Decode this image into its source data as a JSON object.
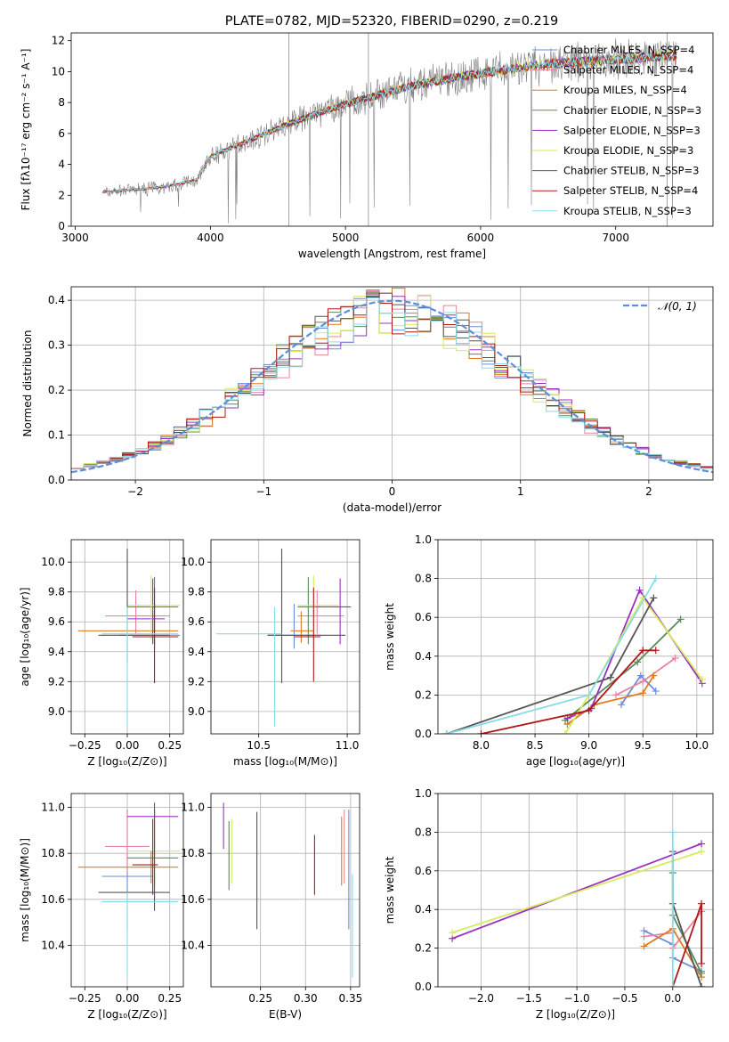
{
  "colors": {
    "chabrier_miles": "#6a8edc",
    "salpeter_miles": "#e7859e",
    "kroupa_miles": "#e07a1f",
    "chabrier_elodie": "#5a8a5a",
    "salpeter_elodie": "#9b30c0",
    "kroupa_elodie": "#d6ec5a",
    "chabrier_stelib": "#555555",
    "salpeter_stelib": "#b01818",
    "kroupa_stelib": "#86dde6",
    "data": "#808080",
    "normal": "#5b8fdc"
  },
  "chart_data": [
    {
      "id": "spectrum",
      "type": "line",
      "title": "PLATE=0782, MJD=52320, FIBERID=0290, z=0.219",
      "xlabel": "wavelength [Angstrom, rest frame]",
      "ylabel": "Flux [fλ10⁻¹⁷ erg cm⁻² s⁻¹ A⁻¹]",
      "xlim": [
        2970,
        7720
      ],
      "ylim": [
        0,
        12.5
      ],
      "xticks": [
        3000,
        4000,
        5000,
        6000,
        7000
      ],
      "yticks": [
        0,
        2,
        4,
        6,
        8,
        10,
        12
      ],
      "continuum_x": [
        3200,
        3500,
        3700,
        3900,
        4000,
        4300,
        4600,
        5000,
        5500,
        6000,
        6500,
        7000,
        7400
      ],
      "continuum_y": [
        2.2,
        2.4,
        2.6,
        3.0,
        4.5,
        5.6,
        6.7,
        7.9,
        9.1,
        9.9,
        10.5,
        10.8,
        11.0
      ],
      "legend": [
        "Chabrier MILES, N_SSP=4",
        "Salpeter MILES, N_SSP=4",
        "Kroupa MILES, N_SSP=4",
        "Chabrier ELODIE, N_SSP=3",
        "Salpeter ELODIE, N_SSP=3",
        "Kroupa ELODIE, N_SSP=3",
        "Chabrier STELIB, N_SSP=3",
        "Salpeter STELIB, N_SSP=4",
        "Kroupa STELIB, N_SSP=3"
      ]
    },
    {
      "id": "residuals",
      "type": "line",
      "xlabel": "(data-model)/error",
      "ylabel": "Normed distribution",
      "xlim": [
        -2.5,
        2.5
      ],
      "ylim": [
        0,
        0.43
      ],
      "xticks": [
        -2,
        -1,
        0,
        1,
        2
      ],
      "yticks": [
        0.0,
        0.1,
        0.2,
        0.3,
        0.4
      ],
      "legend": [
        "𝒩(0, 1)"
      ],
      "grid": true,
      "bin_width": 0.1
    },
    {
      "id": "age_vs_Z",
      "type": "scatter",
      "xlabel": "Z [log₁₀(Z/Z⊙)]",
      "ylabel": "age  [log₁₀(age/yr)]",
      "xlim": [
        -0.33,
        0.33
      ],
      "ylim": [
        8.85,
        10.15
      ],
      "xticks": [
        -0.25,
        0.0,
        0.25
      ],
      "xticklabels": [
        "−0.25",
        "0.00",
        "0.25"
      ],
      "yticks": [
        9.0,
        9.2,
        9.4,
        9.6,
        9.8,
        10.0
      ],
      "grid": true,
      "points": [
        {
          "x": 0.16,
          "y": 9.51,
          "xlo": -0.05,
          "xhi": 0.31,
          "ylo": 9.42,
          "yhi": 9.72,
          "c": "chabrier_miles"
        },
        {
          "x": 0.05,
          "y": 9.64,
          "xlo": -0.13,
          "xhi": 0.25,
          "ylo": 9.52,
          "yhi": 9.81,
          "c": "salpeter_miles"
        },
        {
          "x": 0.15,
          "y": 9.54,
          "xlo": -0.29,
          "xhi": 0.3,
          "ylo": 9.46,
          "yhi": 9.67,
          "c": "kroupa_miles"
        },
        {
          "x": 0.16,
          "y": 9.7,
          "xlo": 0.0,
          "xhi": 0.3,
          "ylo": 9.45,
          "yhi": 9.9,
          "c": "chabrier_elodie"
        },
        {
          "x": 0.15,
          "y": 9.62,
          "xlo": 0.0,
          "xhi": 0.22,
          "ylo": 9.45,
          "yhi": 9.89,
          "c": "salpeter_elodie"
        },
        {
          "x": 0.14,
          "y": 9.71,
          "xlo": 0.0,
          "xhi": 0.31,
          "ylo": 9.48,
          "yhi": 9.91,
          "c": "kroupa_elodie"
        },
        {
          "x": 0.0,
          "y": 9.51,
          "xlo": -0.17,
          "xhi": 0.25,
          "ylo": 9.32,
          "yhi": 10.09,
          "c": "chabrier_stelib"
        },
        {
          "x": 0.16,
          "y": 9.5,
          "xlo": 0.03,
          "xhi": 0.3,
          "ylo": 9.19,
          "yhi": 9.83,
          "c": "salpeter_stelib"
        },
        {
          "x": 0.0,
          "y": 9.52,
          "xlo": -0.15,
          "xhi": 0.3,
          "ylo": 8.9,
          "yhi": 9.7,
          "c": "kroupa_stelib"
        }
      ]
    },
    {
      "id": "age_vs_mass",
      "type": "scatter",
      "xlabel": "mass [log₁₀(M/M⊙)]",
      "xlim": [
        10.23,
        11.07
      ],
      "ylim": [
        8.85,
        10.15
      ],
      "xticks": [
        10.5,
        11.0
      ],
      "yticks": [
        9.0,
        9.2,
        9.4,
        9.6,
        9.8,
        10.0
      ],
      "grid": true,
      "points": [
        {
          "x": 10.7,
          "y": 9.51,
          "xlo": 10.55,
          "xhi": 10.85,
          "ylo": 9.42,
          "yhi": 9.72,
          "c": "chabrier_miles"
        },
        {
          "x": 10.83,
          "y": 9.64,
          "xlo": 10.72,
          "xhi": 10.98,
          "ylo": 9.52,
          "yhi": 9.81,
          "c": "salpeter_miles"
        },
        {
          "x": 10.74,
          "y": 9.54,
          "xlo": 10.68,
          "xhi": 10.81,
          "ylo": 9.46,
          "yhi": 9.67,
          "c": "kroupa_miles"
        },
        {
          "x": 10.78,
          "y": 9.7,
          "xlo": 10.72,
          "xhi": 10.85,
          "ylo": 9.45,
          "yhi": 9.9,
          "c": "chabrier_elodie"
        },
        {
          "x": 10.96,
          "y": 9.7,
          "xlo": 10.82,
          "xhi": 11.02,
          "ylo": 9.45,
          "yhi": 9.89,
          "c": "salpeter_elodie"
        },
        {
          "x": 10.81,
          "y": 9.71,
          "xlo": 10.72,
          "xhi": 10.95,
          "ylo": 9.48,
          "yhi": 9.91,
          "c": "kroupa_elodie"
        },
        {
          "x": 10.63,
          "y": 9.51,
          "xlo": 10.55,
          "xhi": 10.99,
          "ylo": 9.19,
          "yhi": 10.09,
          "c": "chabrier_stelib"
        },
        {
          "x": 10.81,
          "y": 9.5,
          "xlo": 10.7,
          "xhi": 10.85,
          "ylo": 9.2,
          "yhi": 9.83,
          "c": "salpeter_stelib"
        },
        {
          "x": 10.59,
          "y": 9.52,
          "xlo": 10.26,
          "xhi": 10.63,
          "ylo": 8.9,
          "yhi": 9.7,
          "c": "kroupa_stelib"
        }
      ]
    },
    {
      "id": "mass_weight_vs_age",
      "type": "line",
      "xlabel": "age  [log₁₀(age/yr)]",
      "ylabel": "mass weight",
      "xlim": [
        7.6,
        10.15
      ],
      "ylim": [
        0,
        1.0
      ],
      "xticks": [
        8.0,
        8.5,
        9.0,
        9.5,
        10.0
      ],
      "yticks": [
        0.0,
        0.2,
        0.4,
        0.6,
        0.8,
        1.0
      ],
      "grid": true,
      "series": [
        {
          "c": "chabrier_miles",
          "x": [
            9.3,
            9.48,
            9.62
          ],
          "y": [
            0.15,
            0.3,
            0.22
          ]
        },
        {
          "c": "salpeter_miles",
          "x": [
            9.25,
            9.5,
            9.8
          ],
          "y": [
            0.2,
            0.27,
            0.39
          ]
        },
        {
          "c": "kroupa_miles",
          "x": [
            8.8,
            9.05,
            9.5,
            9.6
          ],
          "y": [
            0.05,
            0.15,
            0.21,
            0.3
          ]
        },
        {
          "c": "chabrier_elodie",
          "x": [
            8.78,
            9.45,
            9.85
          ],
          "y": [
            0.07,
            0.37,
            0.59
          ]
        },
        {
          "c": "salpeter_elodie",
          "x": [
            8.8,
            9.02,
            9.47,
            10.05
          ],
          "y": [
            0.08,
            0.13,
            0.74,
            0.26
          ]
        },
        {
          "c": "kroupa_elodie",
          "x": [
            8.78,
            9.0,
            9.5,
            10.05
          ],
          "y": [
            0.0,
            0.2,
            0.7,
            0.28
          ]
        },
        {
          "c": "chabrier_stelib",
          "x": [
            7.68,
            9.2,
            9.6
          ],
          "y": [
            0.0,
            0.29,
            0.7
          ]
        },
        {
          "c": "salpeter_stelib",
          "x": [
            8.0,
            9.0,
            9.5,
            9.62
          ],
          "y": [
            0.0,
            0.12,
            0.43,
            0.43
          ]
        },
        {
          "c": "kroupa_stelib",
          "x": [
            7.68,
            9.0,
            9.62
          ],
          "y": [
            0.0,
            0.2,
            0.8
          ]
        }
      ]
    },
    {
      "id": "mass_vs_Z",
      "type": "scatter",
      "xlabel": "Z [log₁₀(Z/Z⊙)]",
      "ylabel": "mass [log₁₀(M/M⊙)]",
      "xlim": [
        -0.33,
        0.33
      ],
      "ylim": [
        10.22,
        11.06
      ],
      "xticks": [
        -0.25,
        0.0,
        0.25
      ],
      "xticklabels": [
        "−0.25",
        "0.00",
        "0.25"
      ],
      "yticks": [
        10.4,
        10.6,
        10.8,
        11.0
      ],
      "grid": true,
      "points": [
        {
          "x": 0.0,
          "y": 10.7,
          "xlo": -0.15,
          "xhi": 0.15,
          "ylo": 10.47,
          "yhi": 10.99,
          "c": "chabrier_miles"
        },
        {
          "x": 0.0,
          "y": 10.83,
          "xlo": -0.13,
          "xhi": 0.13,
          "ylo": 10.72,
          "yhi": 10.98,
          "c": "salpeter_miles"
        },
        {
          "x": 0.14,
          "y": 10.74,
          "xlo": -0.29,
          "xhi": 0.3,
          "ylo": 10.67,
          "yhi": 10.81,
          "c": "kroupa_miles"
        },
        {
          "x": 0.16,
          "y": 10.78,
          "xlo": 0.0,
          "xhi": 0.3,
          "ylo": 10.65,
          "yhi": 10.85,
          "c": "chabrier_elodie"
        },
        {
          "x": 0.16,
          "y": 10.96,
          "xlo": 0.0,
          "xhi": 0.3,
          "ylo": 10.82,
          "yhi": 11.02,
          "c": "salpeter_elodie"
        },
        {
          "x": 0.16,
          "y": 10.81,
          "xlo": 0.0,
          "xhi": 0.31,
          "ylo": 10.67,
          "yhi": 10.95,
          "c": "kroupa_elodie"
        },
        {
          "x": 0.16,
          "y": 10.63,
          "xlo": -0.17,
          "xhi": 0.25,
          "ylo": 10.55,
          "yhi": 10.99,
          "c": "chabrier_stelib"
        },
        {
          "x": 0.15,
          "y": 10.75,
          "xlo": 0.03,
          "xhi": 0.18,
          "ylo": 10.62,
          "yhi": 10.95,
          "c": "salpeter_stelib"
        },
        {
          "x": 0.0,
          "y": 10.59,
          "xlo": -0.15,
          "xhi": 0.3,
          "ylo": 10.26,
          "yhi": 10.63,
          "c": "kroupa_stelib"
        }
      ]
    },
    {
      "id": "mass_vs_ebv",
      "type": "scatter",
      "xlabel": "E(B-V)",
      "xlim": [
        0.195,
        0.36
      ],
      "ylim": [
        10.22,
        11.06
      ],
      "xticks": [
        0.25,
        0.3,
        0.35
      ],
      "xticklabels": [
        "0.25",
        "0.30",
        "0.35"
      ],
      "yticks": [
        10.4,
        10.6,
        10.8,
        11.0
      ],
      "grid": true,
      "points": [
        {
          "x": 0.348,
          "y": 10.7,
          "ylo": 10.47,
          "yhi": 10.99,
          "c": "chabrier_miles"
        },
        {
          "x": 0.343,
          "y": 10.83,
          "ylo": 10.67,
          "yhi": 10.99,
          "c": "salpeter_miles"
        },
        {
          "x": 0.34,
          "y": 10.74,
          "ylo": 10.66,
          "yhi": 10.96,
          "c": "kroupa_miles"
        },
        {
          "x": 0.215,
          "y": 10.78,
          "ylo": 10.64,
          "yhi": 10.94,
          "c": "chabrier_elodie"
        },
        {
          "x": 0.209,
          "y": 10.96,
          "ylo": 10.82,
          "yhi": 11.02,
          "c": "salpeter_elodie"
        },
        {
          "x": 0.218,
          "y": 10.81,
          "ylo": 10.67,
          "yhi": 10.95,
          "c": "kroupa_elodie"
        },
        {
          "x": 0.246,
          "y": 10.63,
          "ylo": 10.47,
          "yhi": 10.98,
          "c": "chabrier_stelib"
        },
        {
          "x": 0.31,
          "y": 10.75,
          "ylo": 10.62,
          "yhi": 10.88,
          "c": "salpeter_stelib"
        },
        {
          "x": 0.352,
          "y": 10.5,
          "ylo": 10.26,
          "yhi": 10.71,
          "c": "kroupa_stelib"
        }
      ]
    },
    {
      "id": "mass_weight_vs_Z",
      "type": "line",
      "xlabel": "Z [log₁₀(Z/Z⊙)]",
      "ylabel": "mass weight",
      "xlim": [
        -2.45,
        0.42
      ],
      "ylim": [
        0,
        1.0
      ],
      "xticks": [
        -2.0,
        -1.5,
        -1.0,
        -0.5,
        0.0
      ],
      "xticklabels": [
        "−2.0",
        "−1.5",
        "−1.0",
        "−0.5",
        "0.0"
      ],
      "yticks": [
        0.0,
        0.2,
        0.4,
        0.6,
        0.8,
        1.0
      ],
      "grid": true,
      "series": [
        {
          "c": "chabrier_miles",
          "x": [
            -0.3,
            0.0,
            0.0,
            0.3
          ],
          "y": [
            0.29,
            0.22,
            0.15,
            0.08
          ]
        },
        {
          "c": "salpeter_miles",
          "x": [
            -0.3,
            0.0,
            0.0,
            0.3
          ],
          "y": [
            0.26,
            0.28,
            0.2,
            0.39
          ]
        },
        {
          "c": "kroupa_miles",
          "x": [
            -0.3,
            0.0,
            0.3
          ],
          "y": [
            0.21,
            0.3,
            0.05
          ]
        },
        {
          "c": "chabrier_elodie",
          "x": [
            0.0,
            0.0,
            0.3
          ],
          "y": [
            0.59,
            0.37,
            0.07
          ]
        },
        {
          "c": "salpeter_elodie",
          "x": [
            -2.3,
            0.3
          ],
          "y": [
            0.25,
            0.74
          ]
        },
        {
          "c": "kroupa_elodie",
          "x": [
            -2.3,
            0.3
          ],
          "y": [
            0.28,
            0.7
          ]
        },
        {
          "c": "chabrier_stelib",
          "x": [
            0.0,
            0.0,
            0.3
          ],
          "y": [
            0.7,
            0.43,
            0.0
          ]
        },
        {
          "c": "salpeter_stelib",
          "x": [
            0.0,
            0.3,
            0.3
          ],
          "y": [
            0.0,
            0.43,
            0.12
          ]
        },
        {
          "c": "kroupa_stelib",
          "x": [
            0.0,
            0.0,
            0.0
          ],
          "y": [
            0.8,
            0.6,
            0.0
          ]
        }
      ]
    }
  ]
}
